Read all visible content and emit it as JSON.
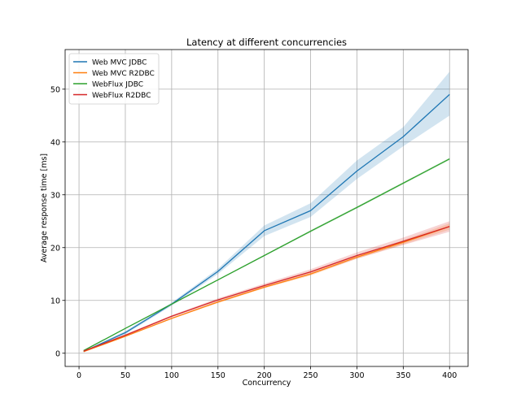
{
  "chart_data": {
    "type": "line",
    "title": "Latency at different concurrencies",
    "xlabel": "Concurrency",
    "ylabel": "Average response time [ms]",
    "xlim": [
      -15,
      420
    ],
    "ylim": [
      -2.5,
      57.5
    ],
    "xticks": [
      0,
      50,
      100,
      150,
      200,
      250,
      300,
      350,
      400
    ],
    "yticks": [
      0,
      10,
      20,
      30,
      40,
      50
    ],
    "grid": true,
    "legend_position": "top-left",
    "x": [
      5,
      50,
      100,
      150,
      200,
      250,
      300,
      350,
      400
    ],
    "series": [
      {
        "name": "Web MVC JDBC",
        "color": "#1f77b4",
        "values": [
          0.3,
          3.9,
          9.3,
          15.5,
          23.2,
          27.0,
          34.5,
          41.0,
          49.0
        ],
        "band_lower": [
          0.2,
          3.6,
          9.0,
          15.0,
          22.2,
          25.8,
          33.0,
          39.2,
          45.0
        ],
        "band_upper": [
          0.4,
          4.2,
          9.6,
          16.0,
          24.2,
          28.4,
          36.5,
          42.8,
          53.3
        ]
      },
      {
        "name": "Web MVC R2DBC",
        "color": "#ff7f0e",
        "values": [
          0.3,
          3.2,
          6.6,
          9.7,
          12.5,
          15.0,
          18.2,
          21.0,
          24.0
        ],
        "band_lower": [
          0.25,
          3.1,
          6.5,
          9.5,
          12.3,
          14.7,
          17.9,
          20.6,
          23.4
        ],
        "band_upper": [
          0.35,
          3.3,
          6.7,
          9.9,
          12.7,
          15.3,
          18.5,
          21.4,
          24.6
        ]
      },
      {
        "name": "WebFlux JDBC",
        "color": "#2ca02c",
        "values": [
          0.5,
          4.7,
          9.3,
          13.9,
          18.5,
          23.1,
          27.6,
          32.2,
          36.8
        ],
        "band_lower": [
          0.45,
          4.65,
          9.2,
          13.8,
          18.4,
          22.9,
          27.4,
          32.0,
          36.6
        ],
        "band_upper": [
          0.55,
          4.75,
          9.4,
          14.0,
          18.6,
          23.3,
          27.8,
          32.4,
          37.0
        ]
      },
      {
        "name": "WebFlux R2DBC",
        "color": "#d62728",
        "values": [
          0.4,
          3.4,
          7.0,
          10.1,
          12.8,
          15.4,
          18.5,
          21.2,
          24.0
        ],
        "band_lower": [
          0.3,
          3.2,
          6.8,
          9.8,
          12.4,
          14.9,
          17.9,
          20.5,
          23.0
        ],
        "band_upper": [
          0.5,
          3.6,
          7.2,
          10.4,
          13.2,
          15.9,
          19.1,
          21.9,
          25.0
        ]
      }
    ]
  }
}
